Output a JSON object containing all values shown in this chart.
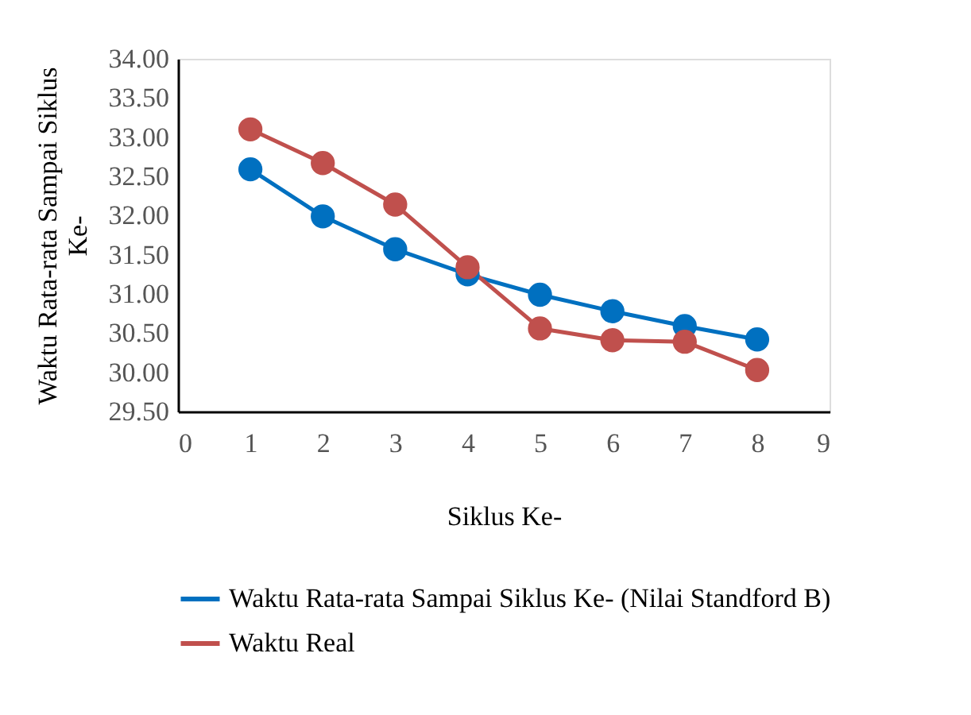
{
  "chart_data": {
    "type": "line",
    "xlabel": "Siklus Ke-",
    "ylabel": "Waktu Rata-rata Sampai Siklus Ke-",
    "x": [
      1,
      2,
      3,
      4,
      5,
      6,
      7,
      8
    ],
    "series": [
      {
        "name": "Waktu Rata-rata Sampai Siklus Ke- (Nilai Standford B)",
        "color": "#0070c0",
        "values": [
          32.59,
          31.99,
          31.57,
          31.25,
          30.99,
          30.78,
          30.59,
          30.42
        ]
      },
      {
        "name": "Waktu Real",
        "color": "#c0504d",
        "values": [
          33.1,
          32.67,
          32.14,
          31.34,
          30.56,
          30.41,
          30.39,
          30.03
        ]
      }
    ],
    "xlim": [
      0,
      9
    ],
    "xticks": [
      0,
      1,
      2,
      3,
      4,
      5,
      6,
      7,
      8,
      9
    ],
    "ylim": [
      29.5,
      34.0
    ],
    "yticks": [
      {
        "value": 29.5,
        "label": "29.50"
      },
      {
        "value": 30.0,
        "label": "30.00"
      },
      {
        "value": 30.5,
        "label": "30.50"
      },
      {
        "value": 31.0,
        "label": "31.00"
      },
      {
        "value": 31.5,
        "label": "31.50"
      },
      {
        "value": 32.0,
        "label": "32.00"
      },
      {
        "value": 32.5,
        "label": "32.50"
      },
      {
        "value": 33.0,
        "label": "33.00"
      },
      {
        "value": 33.5,
        "label": "33.50"
      },
      {
        "value": 34.0,
        "label": "34.00"
      }
    ],
    "grid": false,
    "legend": "bottom",
    "marker": "circle",
    "line_style": "solid"
  }
}
